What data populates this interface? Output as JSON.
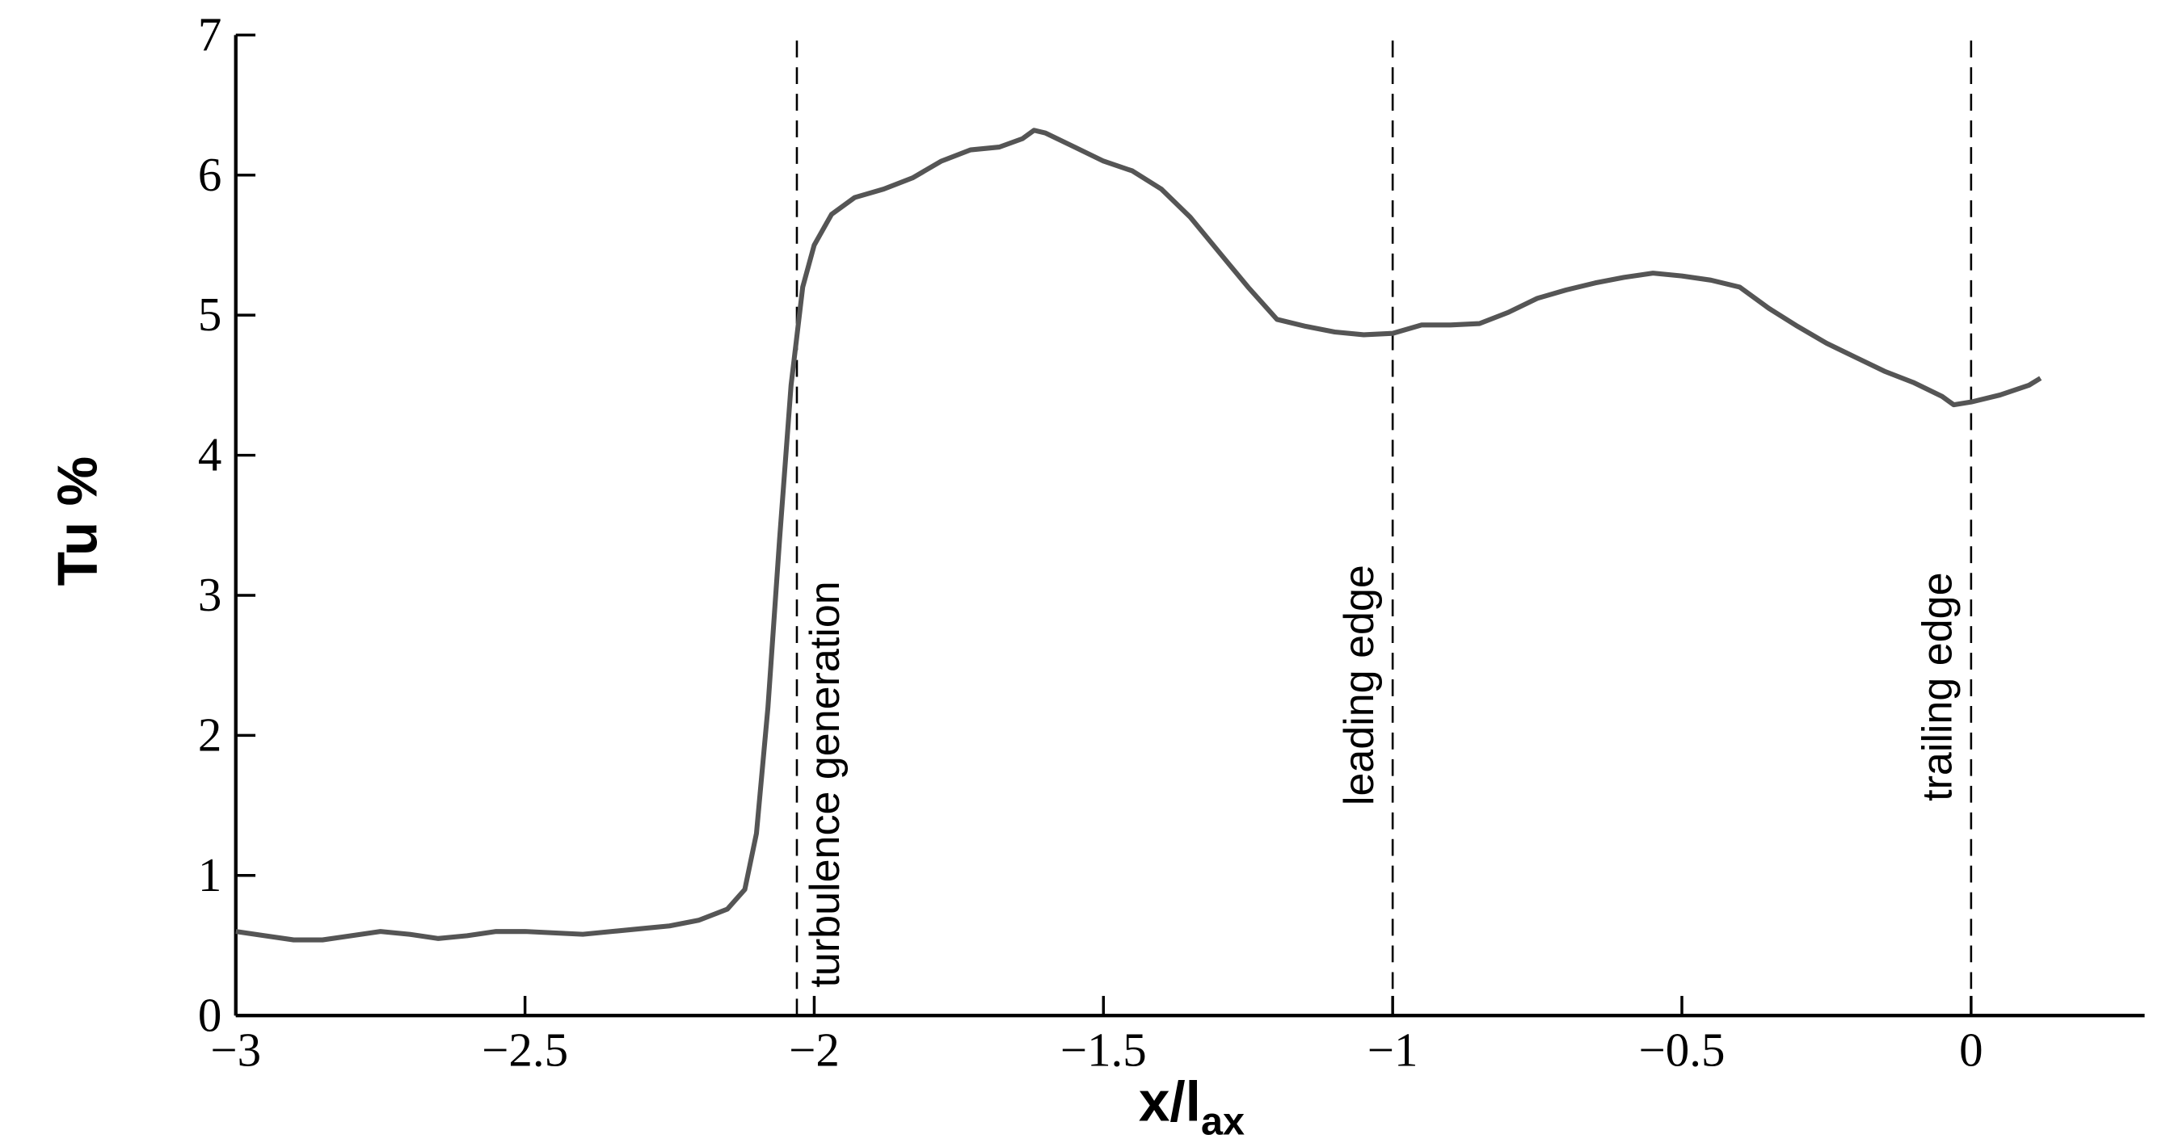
{
  "chart_data": {
    "type": "line",
    "xlabel": "x/l",
    "xlabel_sub": "ax",
    "ylabel": "Tu %",
    "xlim": [
      -3,
      0.3
    ],
    "ylim": [
      0,
      7
    ],
    "xticks": [
      {
        "value": -3,
        "label": "−3"
      },
      {
        "value": -2.5,
        "label": "−2.5"
      },
      {
        "value": -2,
        "label": "−2"
      },
      {
        "value": -1.5,
        "label": "−1.5"
      },
      {
        "value": -1,
        "label": "−1"
      },
      {
        "value": -0.5,
        "label": "−0.5"
      },
      0
    ],
    "yticks": [
      0,
      1,
      2,
      3,
      4,
      5,
      6,
      7
    ],
    "annotations": [
      {
        "x": -2.03,
        "label": "turbulence generation"
      },
      {
        "x": -1,
        "label": "leading edge"
      },
      {
        "x": 0,
        "label": "trailing edge"
      }
    ],
    "series": [
      {
        "color": "#555555",
        "x": [
          -3,
          -2.95,
          -2.9,
          -2.85,
          -2.8,
          -2.75,
          -2.7,
          -2.65,
          -2.6,
          -2.55,
          -2.5,
          -2.45,
          -2.4,
          -2.35,
          -2.3,
          -2.25,
          -2.2,
          -2.15,
          -2.12,
          -2.1,
          -2.08,
          -2.06,
          -2.04,
          -2.02,
          -2.0,
          -1.97,
          -1.93,
          -1.88,
          -1.83,
          -1.78,
          -1.73,
          -1.68,
          -1.64,
          -1.62,
          -1.6,
          -1.55,
          -1.5,
          -1.45,
          -1.4,
          -1.35,
          -1.3,
          -1.25,
          -1.2,
          -1.15,
          -1.1,
          -1.05,
          -1.0,
          -0.95,
          -0.9,
          -0.85,
          -0.8,
          -0.75,
          -0.7,
          -0.65,
          -0.6,
          -0.55,
          -0.5,
          -0.45,
          -0.4,
          -0.35,
          -0.3,
          -0.25,
          -0.2,
          -0.15,
          -0.1,
          -0.05,
          -0.03,
          0.0,
          0.05,
          0.1,
          0.12
        ],
        "values": [
          0.6,
          0.57,
          0.54,
          0.54,
          0.57,
          0.6,
          0.58,
          0.55,
          0.57,
          0.6,
          0.6,
          0.59,
          0.58,
          0.6,
          0.62,
          0.64,
          0.68,
          0.76,
          0.9,
          1.3,
          2.2,
          3.4,
          4.5,
          5.2,
          5.5,
          5.72,
          5.84,
          5.9,
          5.98,
          6.1,
          6.18,
          6.2,
          6.26,
          6.32,
          6.3,
          6.2,
          6.1,
          6.03,
          5.9,
          5.7,
          5.45,
          5.2,
          4.97,
          4.92,
          4.88,
          4.86,
          4.87,
          4.93,
          4.93,
          4.94,
          5.02,
          5.12,
          5.18,
          5.23,
          5.27,
          5.3,
          5.28,
          5.25,
          5.2,
          5.05,
          4.92,
          4.8,
          4.7,
          4.6,
          4.52,
          4.42,
          4.36,
          4.38,
          4.43,
          4.5,
          4.55
        ]
      }
    ]
  }
}
